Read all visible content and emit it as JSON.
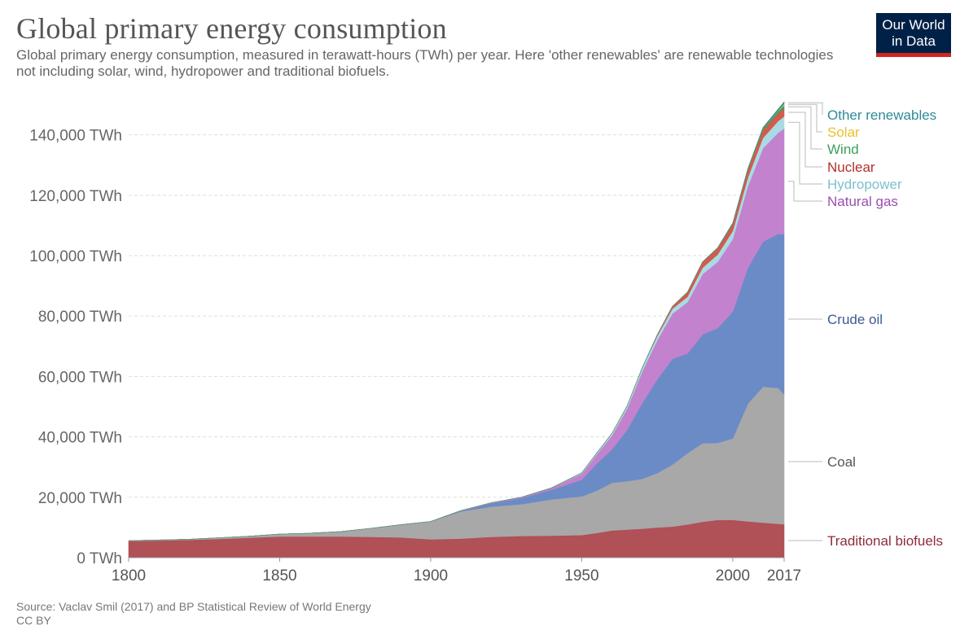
{
  "header": {
    "title": "Global primary energy consumption",
    "subtitle": "Global primary energy consumption, measured in terawatt-hours (TWh) per year. Here 'other renewables' are renewable technologies not including solar, wind, hydropower and traditional biofuels."
  },
  "logo": {
    "line1": "Our World",
    "line2": "in Data",
    "bg": "#002147",
    "accent": "#ce261e"
  },
  "footer": {
    "source": "Source: Vaclav Smil (2017) and BP Statistical Review of World Energy",
    "license": "CC BY"
  },
  "chart_data": {
    "type": "area",
    "stacked": true,
    "x": [
      1800,
      1810,
      1820,
      1830,
      1840,
      1850,
      1860,
      1870,
      1880,
      1890,
      1900,
      1910,
      1920,
      1930,
      1940,
      1950,
      1955,
      1960,
      1965,
      1970,
      1975,
      1980,
      1985,
      1990,
      1995,
      2000,
      2005,
      2010,
      2015,
      2017
    ],
    "series": [
      {
        "name": "Traditional biofuels",
        "color": "#b05057",
        "label_color": "#8c2d39",
        "values": [
          5500,
          5700,
          5900,
          6200,
          6600,
          7000,
          7000,
          7000,
          6900,
          6700,
          6100,
          6300,
          6900,
          7200,
          7300,
          7500,
          8200,
          9000,
          9300,
          9600,
          10000,
          10300,
          11000,
          11900,
          12500,
          12500,
          12000,
          11600,
          11200,
          11100
        ]
      },
      {
        "name": "Coal",
        "color": "#a8a8a8",
        "label_color": "#555555",
        "values": [
          100,
          150,
          200,
          400,
          500,
          800,
          1100,
          1600,
          2800,
          4200,
          5900,
          9000,
          10000,
          10500,
          12000,
          12800,
          14000,
          15800,
          16000,
          16500,
          18000,
          20500,
          23600,
          26000,
          25500,
          27000,
          39000,
          45000,
          45000,
          43000
        ]
      },
      {
        "name": "Crude oil",
        "color": "#6b8bc6",
        "label_color": "#3c5a96",
        "values": [
          0,
          0,
          0,
          0,
          0,
          0,
          0,
          0,
          0,
          0,
          0,
          200,
          1100,
          2000,
          3200,
          5500,
          9000,
          11000,
          17000,
          25000,
          31000,
          35000,
          33000,
          36000,
          38000,
          42000,
          45000,
          48000,
          51000,
          53000
        ]
      },
      {
        "name": "Natural gas",
        "color": "#c282ce",
        "label_color": "#9a4fae",
        "values": [
          0,
          0,
          0,
          0,
          0,
          0,
          0,
          0,
          0,
          0,
          0,
          100,
          200,
          300,
          600,
          2000,
          3000,
          4600,
          7000,
          10500,
          13000,
          15000,
          17000,
          20000,
          22000,
          24000,
          27000,
          31000,
          33500,
          35000
        ]
      },
      {
        "name": "Hydropower",
        "color": "#a8dbe3",
        "label_color": "#7fc0cf",
        "values": [
          0,
          0,
          0,
          0,
          0,
          0,
          0,
          0,
          0,
          0,
          0,
          0,
          0,
          0,
          0,
          300,
          500,
          700,
          900,
          1200,
          1400,
          1600,
          1800,
          2100,
          2400,
          2650,
          2900,
          3400,
          3850,
          4050
        ]
      },
      {
        "name": "Nuclear",
        "color": "#d55a4a",
        "label_color": "#b0302c",
        "values": [
          0,
          0,
          0,
          0,
          0,
          0,
          0,
          0,
          0,
          0,
          0,
          0,
          0,
          0,
          0,
          0,
          0,
          0,
          0,
          0,
          400,
          800,
          1500,
          1900,
          2100,
          2400,
          2550,
          2600,
          2550,
          2600
        ]
      },
      {
        "name": "Wind",
        "color": "#3aa06b",
        "label_color": "#3d9f5f",
        "values": [
          0,
          0,
          0,
          0,
          0,
          0,
          0,
          0,
          0,
          0,
          0,
          0,
          0,
          0,
          0,
          0,
          0,
          0,
          0,
          0,
          0,
          0,
          0,
          0,
          10,
          50,
          150,
          400,
          700,
          1100
        ]
      },
      {
        "name": "Solar",
        "color": "#f3c94a",
        "label_color": "#e8c032",
        "values": [
          0,
          0,
          0,
          0,
          0,
          0,
          0,
          0,
          0,
          0,
          0,
          0,
          0,
          0,
          0,
          0,
          0,
          0,
          0,
          0,
          0,
          0,
          0,
          0,
          0,
          0,
          0,
          50,
          200,
          450
        ]
      },
      {
        "name": "Other renewables",
        "color": "#3a8a8a",
        "label_color": "#2e8a99",
        "values": [
          0,
          0,
          0,
          0,
          0,
          0,
          0,
          0,
          0,
          0,
          0,
          0,
          0,
          0,
          0,
          0,
          0,
          0,
          0,
          0,
          0,
          0,
          50,
          100,
          150,
          250,
          300,
          400,
          500,
          600
        ]
      }
    ],
    "ylim": [
      0,
      155000
    ],
    "y_ticks": [
      0,
      20000,
      40000,
      60000,
      80000,
      100000,
      120000,
      140000
    ],
    "y_tick_labels": [
      "0 TWh",
      "20,000 TWh",
      "40,000 TWh",
      "60,000 TWh",
      "80,000 TWh",
      "100,000 TWh",
      "120,000 TWh",
      "140,000 TWh"
    ],
    "x_ticks": [
      1800,
      1850,
      1900,
      1950,
      2000,
      2017
    ],
    "x_tick_labels": [
      "1800",
      "1850",
      "1900",
      "1950",
      "2000",
      "2017"
    ],
    "grid": "horizontal-dashed",
    "legend": "right-inline"
  }
}
